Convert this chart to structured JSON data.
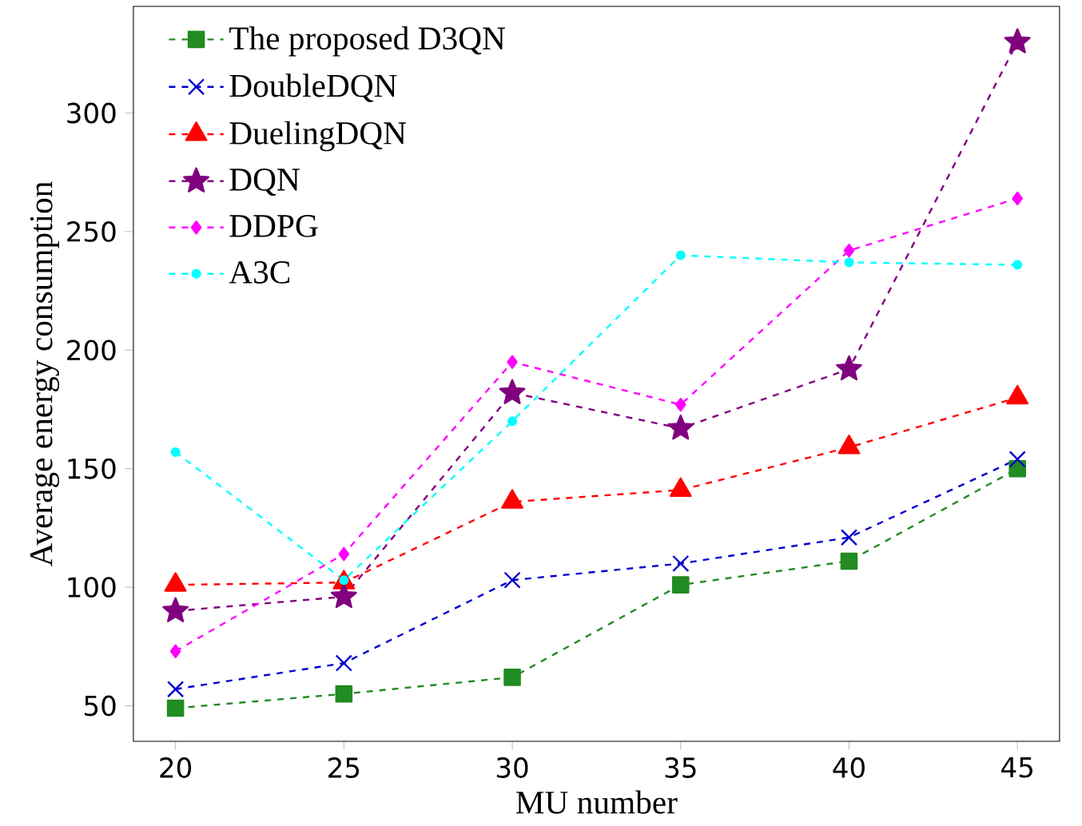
{
  "chart_data": {
    "type": "line",
    "xlabel": "MU number",
    "ylabel": "Average energy consumption",
    "x": [
      20,
      25,
      30,
      35,
      40,
      45
    ],
    "series": [
      {
        "name": "The proposed D3QN",
        "color": "#228b22",
        "marker": "square",
        "values": [
          49,
          55,
          62,
          101,
          111,
          150
        ]
      },
      {
        "name": "DoubleDQN",
        "color": "#0000cd",
        "marker": "cross",
        "values": [
          57,
          68,
          103,
          110,
          121,
          154
        ]
      },
      {
        "name": "DuelingDQN",
        "color": "#ff0000",
        "marker": "triangle",
        "values": [
          101,
          102,
          136,
          141,
          159,
          180
        ]
      },
      {
        "name": "DQN",
        "color": "#800080",
        "marker": "star",
        "values": [
          90,
          96,
          182,
          167,
          192,
          330
        ]
      },
      {
        "name": "DDPG",
        "color": "#ff00ff",
        "marker": "diamond",
        "values": [
          73,
          114,
          195,
          177,
          242,
          264
        ]
      },
      {
        "name": "A3C",
        "color": "#00ffff",
        "marker": "circle",
        "values": [
          157,
          103,
          170,
          240,
          237,
          236
        ]
      }
    ],
    "line_style": "dashed",
    "legend": "top left",
    "grid": false,
    "xlim": [
      18.75,
      46.25
    ],
    "ylim": [
      35,
      345
    ],
    "xticks": [
      20,
      25,
      30,
      35,
      40,
      45
    ],
    "yticks": [
      50,
      100,
      150,
      200,
      250,
      300
    ]
  }
}
